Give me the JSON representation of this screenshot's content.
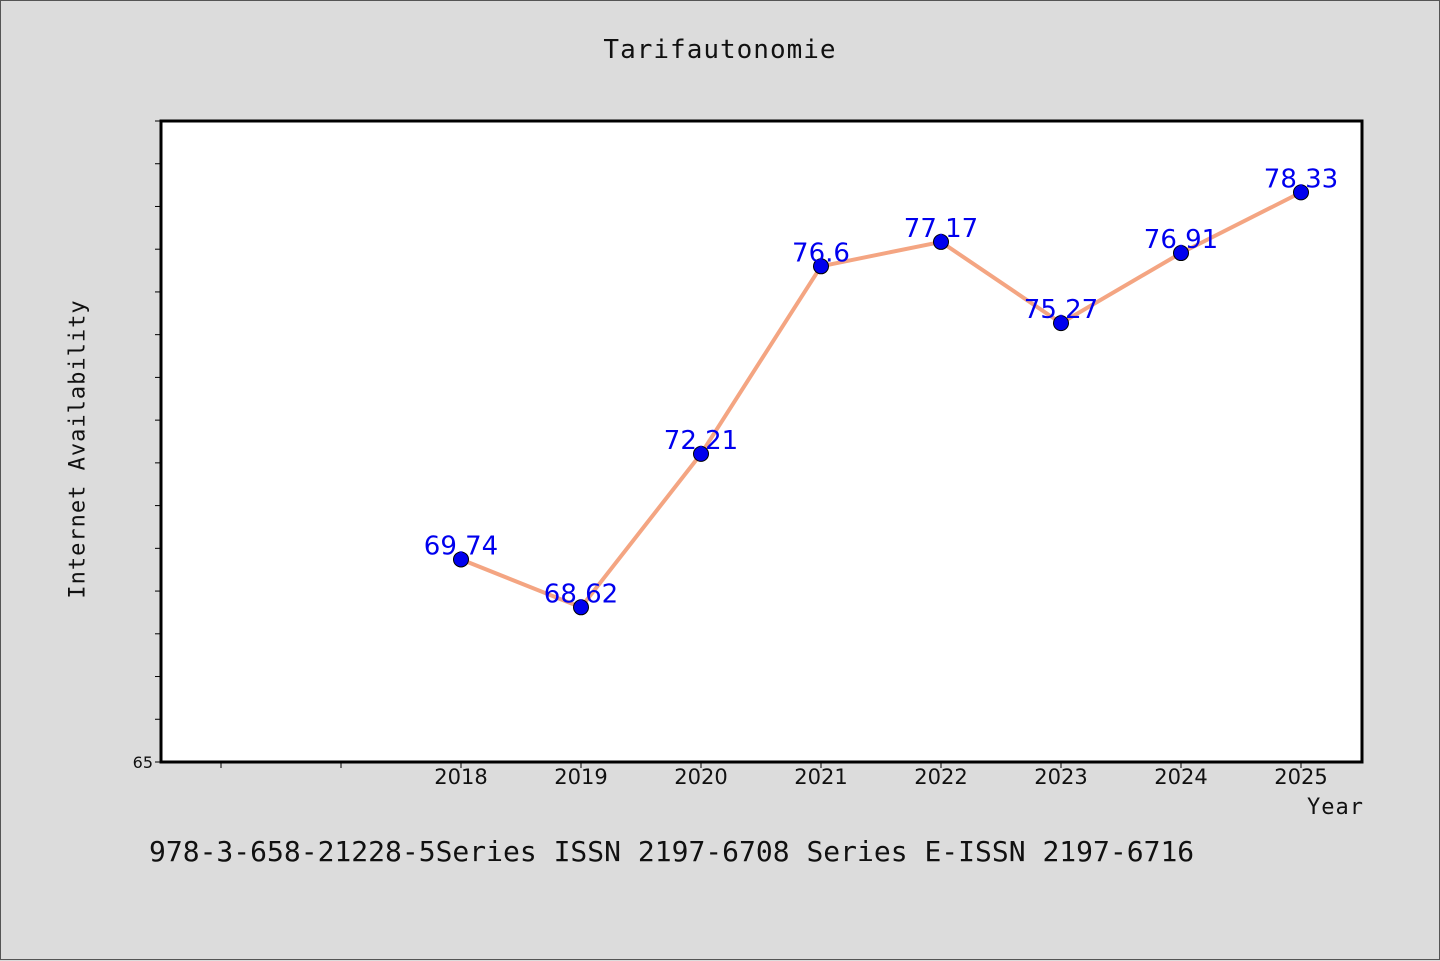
{
  "chart_data": {
    "type": "line",
    "title": "Tarifautonomie",
    "xlabel": "Year",
    "ylabel": "Internet Availability",
    "categories": [
      "2018",
      "2019",
      "2020",
      "2021",
      "2022",
      "2023",
      "2024",
      "2025"
    ],
    "values": [
      69.74,
      68.62,
      72.21,
      76.6,
      77.17,
      75.27,
      76.91,
      78.33
    ],
    "value_labels": [
      "69.74",
      "68.62",
      "72.21",
      "76.6",
      "77.17",
      "75.27",
      "76.91",
      "78.33"
    ],
    "ylim": [
      65,
      80
    ],
    "y_tick_labels": [
      "65"
    ],
    "grid": false,
    "line_color": "#f4a582",
    "marker_color": "#0000ee",
    "label_color": "#0000ee"
  },
  "footer_text": "978-3-658-21228-5Series ISSN 2197-6708 Series E-ISSN 2197-6716"
}
